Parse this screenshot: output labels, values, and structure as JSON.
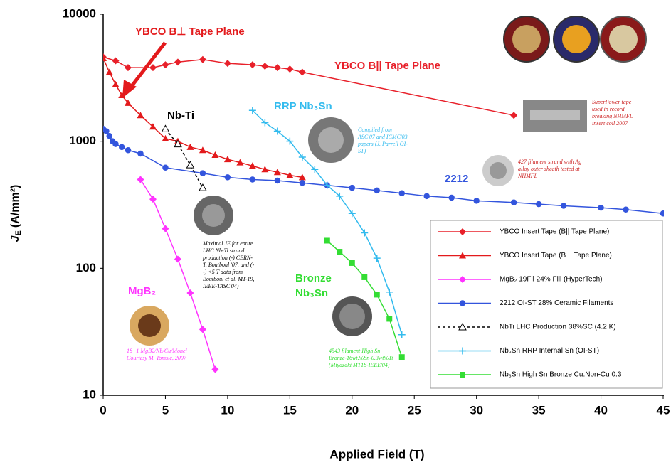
{
  "chart_data": {
    "type": "line",
    "xlabel": "Applied Field (T)",
    "ylabel": {
      "symbol": "J",
      "subscript": "E",
      "unit": "(A/mm²)"
    },
    "xlim": [
      0,
      45
    ],
    "xticks": [
      0,
      5,
      10,
      15,
      20,
      25,
      30,
      35,
      40,
      45
    ],
    "ylim": [
      10,
      10000
    ],
    "yticks": [
      10,
      100,
      1000,
      10000
    ],
    "ylog": true,
    "series": [
      {
        "name": "YBCO Insert Tape (B|| Tape Plane)",
        "color": "#e8202a",
        "marker": "diamond",
        "x": [
          0,
          1,
          2,
          4,
          5,
          6,
          8,
          10,
          12,
          13,
          14,
          15,
          16,
          33
        ],
        "values": [
          4600,
          4300,
          3800,
          3800,
          4000,
          4200,
          4400,
          4100,
          4000,
          3900,
          3800,
          3700,
          3500,
          1600
        ]
      },
      {
        "name": "YBCO Insert Tape (B⊥ Tape Plane)",
        "color": "#e31a1c",
        "marker": "triangle",
        "x": [
          0,
          0.5,
          1,
          1.5,
          2,
          3,
          4,
          5,
          6,
          7,
          8,
          9,
          10,
          11,
          12,
          13,
          14,
          15,
          16
        ],
        "values": [
          4500,
          3500,
          2800,
          2300,
          2000,
          1600,
          1300,
          1050,
          1000,
          900,
          850,
          780,
          720,
          680,
          640,
          600,
          570,
          540,
          520
        ]
      },
      {
        "name": "MgB₂ 19Fil 24% Fill (HyperTech)",
        "color": "#ff33ff",
        "marker": "diamond",
        "x": [
          3,
          4,
          5,
          6,
          7,
          8,
          9
        ],
        "values": [
          500,
          350,
          205,
          118,
          64,
          33,
          16
        ]
      },
      {
        "name": "2212 OI-ST 28% Ceramic Filaments",
        "color": "#3355dd",
        "marker": "circle",
        "x": [
          0,
          0.25,
          0.5,
          0.75,
          1,
          1.5,
          2,
          3,
          5,
          8,
          10,
          12,
          14,
          16,
          18,
          20,
          22,
          24,
          26,
          28,
          30,
          33,
          35,
          37,
          40,
          42,
          45
        ],
        "values": [
          1250,
          1200,
          1100,
          1000,
          950,
          900,
          850,
          800,
          620,
          560,
          520,
          500,
          490,
          470,
          450,
          430,
          410,
          390,
          370,
          360,
          340,
          330,
          320,
          310,
          300,
          290,
          270
        ]
      },
      {
        "name": "NbTi LHC Production 38%SC (4.2 K)",
        "color": "#000000",
        "marker": "open-triangle",
        "dash": true,
        "x": [
          5,
          6,
          7,
          8
        ],
        "values": [
          1250,
          950,
          650,
          430
        ]
      },
      {
        "name": "Nb₃Sn RRP Internal Sn (OI-ST)",
        "color": "#33bbee",
        "marker": "plus",
        "x": [
          12,
          13,
          14,
          15,
          16,
          17,
          18,
          19,
          20,
          21,
          22,
          23,
          24
        ],
        "values": [
          1750,
          1400,
          1200,
          1000,
          750,
          600,
          450,
          370,
          270,
          190,
          120,
          65,
          30
        ]
      },
      {
        "name": "Nb₃Sn High Sn Bronze Cu:Non-Cu 0.3",
        "color": "#33dd33",
        "marker": "square",
        "x": [
          18,
          19,
          20,
          21,
          22,
          23,
          24
        ],
        "values": [
          165,
          135,
          110,
          85,
          62,
          40,
          20
        ]
      }
    ],
    "labels": [
      {
        "lines": [
          "YBCO B⊥ Tape Plane"
        ],
        "color": "#e31a1c"
      },
      {
        "lines": [
          "YBCO B|| Tape Plane"
        ],
        "color": "#e8202a"
      },
      {
        "lines": [
          "Nb-Ti"
        ],
        "color": "#000000"
      },
      {
        "lines": [
          "RRP Nb₃Sn"
        ],
        "color": "#33bbee"
      },
      {
        "lines": [
          "2212"
        ],
        "color": "#3355dd"
      },
      {
        "lines": [
          "Bronze",
          "Nb₃Sn"
        ],
        "color": "#33dd33"
      },
      {
        "lines": [
          "MgB₂"
        ],
        "color": "#ff33ff"
      }
    ],
    "notes": [
      {
        "lines": [
          "SuperPower tape",
          "used in record",
          "breaking NHMFL",
          "insert coil 2007"
        ],
        "color": "#cc2222"
      },
      {
        "lines": [
          "Compiled from",
          "ASC'07 and ICMC'03",
          "papers (J. Parrell OI-",
          "ST)"
        ],
        "color": "#33bbee"
      },
      {
        "lines": [
          "427 filament strand with Ag",
          "alloy outer sheath tested at",
          "NHMFL"
        ],
        "color": "#cc2222"
      },
      {
        "lines": [
          "Maximal JE for entire",
          "LHC Nb-Ti strand",
          "production (-) CERN-",
          "T. Boutboul '07. and (-",
          "-) <5 T data from",
          "Boutboul et al. MT-19,",
          "IEEE-TASC'04)"
        ],
        "color": "#000000"
      },
      {
        "lines": [
          "4543 filament High Sn",
          "Bronze-16wt.%Sn-0.3wt%Ti",
          "(Miyazaki MT18-IEEE'04)"
        ],
        "color": "#33dd33"
      },
      {
        "lines": [
          "18+1 MgB2/Nb/Cu/Monel",
          "Courtesy M. Tomsic, 2007"
        ],
        "color": "#ff33ff"
      }
    ]
  }
}
